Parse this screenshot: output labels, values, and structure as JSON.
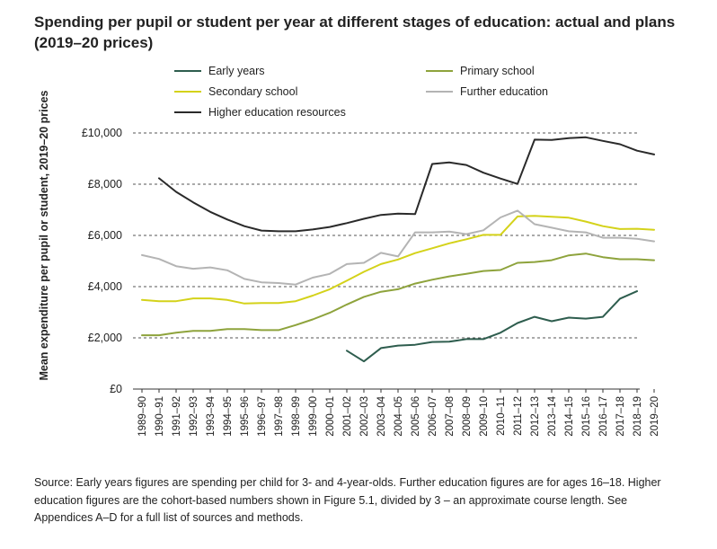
{
  "title": "Spending per pupil or student per year at different stages of education: actual and plans (2019–20 prices)",
  "source": "Source: Early years figures are spending per child for 3- and 4-year-olds. Further education figures are for ages 16–18. Higher education figures are the cohort-based numbers shown in Figure 5.1, divided by 3 – an approximate course length. See Appendices A–D for a full list of sources and methods.",
  "chart_data": {
    "type": "line",
    "title": "Spending per pupil or student per year at different stages of education: actual and plans (2019–20 prices)",
    "xlabel": "",
    "ylabel": "Mean expenditure per pupil or student, 2019–20 prices",
    "ylim": [
      0,
      10000
    ],
    "yticks": [
      0,
      2000,
      4000,
      6000,
      8000,
      10000
    ],
    "ytick_labels": [
      "£0",
      "£2,000",
      "£4,000",
      "£6,000",
      "£8,000",
      "£10,000"
    ],
    "grid": "horizontal dashed",
    "legend_position": "top",
    "categories": [
      "1989–90",
      "1990–91",
      "1991–92",
      "1992–93",
      "1993–94",
      "1994–95",
      "1995–96",
      "1996–97",
      "1997–98",
      "1998–99",
      "1999–00",
      "2000–01",
      "2001–02",
      "2002–03",
      "2003–04",
      "2004–05",
      "2005–06",
      "2006–07",
      "2007–08",
      "2008–09",
      "2009–10",
      "2010–11",
      "2011–12",
      "2012–13",
      "2013–14",
      "2014–15",
      "2015–16",
      "2016–17",
      "2017–18",
      "2018–19",
      "2019–20"
    ],
    "series": [
      {
        "name": "Early years",
        "color": "#2e5d4e",
        "values": [
          null,
          null,
          null,
          null,
          null,
          null,
          null,
          null,
          null,
          null,
          null,
          null,
          1500,
          1080,
          1600,
          1700,
          1730,
          1840,
          1850,
          1950,
          1950,
          2200,
          2580,
          2820,
          2650,
          2790,
          2750,
          2820,
          3530,
          3820,
          null
        ]
      },
      {
        "name": "Primary school",
        "color": "#8ea33c",
        "values": [
          2100,
          2100,
          2200,
          2270,
          2270,
          2340,
          2340,
          2300,
          2300,
          2500,
          2720,
          2980,
          3300,
          3600,
          3800,
          3900,
          4120,
          4270,
          4400,
          4500,
          4610,
          4650,
          4930,
          4960,
          5030,
          5220,
          5290,
          5150,
          5070,
          5070,
          5030
        ]
      },
      {
        "name": "Secondary school",
        "color": "#d4d21a",
        "values": [
          3480,
          3430,
          3430,
          3540,
          3540,
          3480,
          3340,
          3360,
          3360,
          3430,
          3650,
          3900,
          4230,
          4580,
          4880,
          5060,
          5310,
          5500,
          5690,
          5850,
          6020,
          6020,
          6740,
          6760,
          6730,
          6690,
          6540,
          6360,
          6250,
          6260,
          6220
        ]
      },
      {
        "name": "Further education",
        "color": "#b4b4b4",
        "values": [
          5230,
          5080,
          4800,
          4700,
          4750,
          4640,
          4300,
          4170,
          4140,
          4080,
          4350,
          4500,
          4880,
          4930,
          5320,
          5180,
          6120,
          6120,
          6150,
          6050,
          6200,
          6700,
          6970,
          6440,
          6300,
          6160,
          6120,
          5910,
          5910,
          5870,
          5770
        ]
      },
      {
        "name": "Higher education resources",
        "color": "#2a2a2a",
        "values": [
          null,
          8230,
          7700,
          7290,
          6920,
          6620,
          6360,
          6190,
          6160,
          6160,
          6230,
          6330,
          6480,
          6650,
          6800,
          6850,
          6830,
          8790,
          8850,
          8750,
          8450,
          8220,
          8010,
          9740,
          9730,
          9800,
          9830,
          9690,
          9560,
          9310,
          9160
        ]
      }
    ]
  }
}
